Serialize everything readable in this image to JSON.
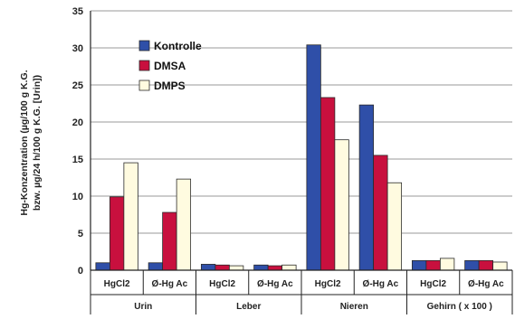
{
  "chart_data": {
    "type": "bar",
    "ylabel": "Hg-Konzentration (µg/100 g K.G. bzw. µg/24 h/100 g K.G. [Urin])",
    "ylabel_lines": [
      "Hg-Konzentration (µg/100 g K.G.",
      "bzw. µg/24 h/100 g K.G. [Urin])"
    ],
    "ylim": [
      0,
      35
    ],
    "yticks": [
      "0",
      "5",
      "10",
      "15",
      "20",
      "25",
      "30",
      "35"
    ],
    "grid": true,
    "legend_position": "top-left",
    "groups": [
      {
        "label": "Urin",
        "categories": [
          "HgCl2",
          "Ø-Hg Ac"
        ]
      },
      {
        "label": "Leber",
        "categories": [
          "HgCl2",
          "Ø-Hg Ac"
        ]
      },
      {
        "label": "Nieren",
        "categories": [
          "HgCl2",
          "Ø-Hg Ac"
        ]
      },
      {
        "label": "Gehirn ( x 100 )",
        "categories": [
          "HgCl2",
          "Ø-Hg Ac"
        ]
      }
    ],
    "categories": [
      "HgCl2",
      "Ø-Hg Ac",
      "HgCl2",
      "Ø-Hg Ac",
      "HgCl2",
      "Ø-Hg Ac",
      "HgCl2",
      "Ø-Hg Ac"
    ],
    "series": [
      {
        "name": "Kontrolle",
        "color": "#2f4fa8",
        "values": [
          1.0,
          1.0,
          0.8,
          0.7,
          30.4,
          22.3,
          1.3,
          1.3
        ]
      },
      {
        "name": "DMSA",
        "color": "#c8103e",
        "values": [
          9.9,
          7.8,
          0.7,
          0.6,
          23.3,
          15.5,
          1.3,
          1.3
        ]
      },
      {
        "name": "DMPS",
        "color": "#fffbe0",
        "values": [
          14.5,
          12.3,
          0.6,
          0.7,
          17.6,
          11.8,
          1.6,
          1.1
        ]
      }
    ]
  }
}
